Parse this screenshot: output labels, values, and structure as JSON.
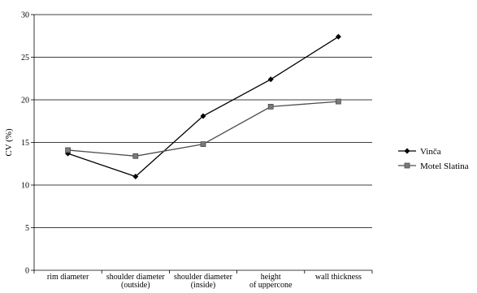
{
  "chart_data": {
    "type": "line",
    "title": "",
    "xlabel": "",
    "ylabel": "CV (%)",
    "ylim": [
      0,
      30
    ],
    "yticks": [
      0,
      5,
      10,
      15,
      20,
      25,
      30
    ],
    "grid": "horizontal",
    "legend_position": "right",
    "categories": [
      [
        "rim diameter"
      ],
      [
        "shoulder diameter",
        "(outside)"
      ],
      [
        "shoulder diameter",
        "(inside)"
      ],
      [
        "height",
        "of uppercone"
      ],
      [
        "wall thickness"
      ]
    ],
    "series": [
      {
        "name": "Vinča",
        "values": [
          13.7,
          11.0,
          18.1,
          22.4,
          27.4
        ],
        "color": "#000000",
        "marker": "diamond"
      },
      {
        "name": "Motel Slatina",
        "values": [
          14.1,
          13.4,
          14.8,
          19.2,
          19.8
        ],
        "color": "#4d4d4d",
        "marker": "square"
      }
    ]
  }
}
